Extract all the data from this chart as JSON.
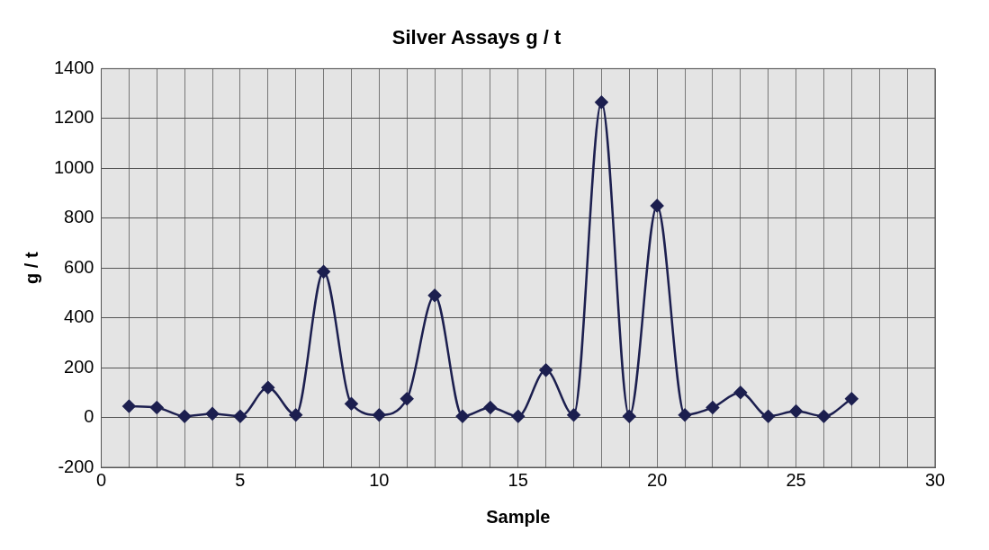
{
  "chart_data": {
    "type": "line",
    "title": "Silver Assays g / t",
    "xlabel": "Sample",
    "ylabel": "g / t",
    "x": [
      1,
      2,
      3,
      4,
      5,
      6,
      7,
      8,
      9,
      10,
      11,
      12,
      13,
      14,
      15,
      16,
      17,
      18,
      19,
      20,
      21,
      22,
      23,
      24,
      25,
      26,
      27
    ],
    "series": [
      {
        "color": "#1c1f4f",
        "values": [
          45,
          40,
          5,
          15,
          5,
          120,
          10,
          585,
          55,
          10,
          75,
          490,
          5,
          40,
          5,
          190,
          10,
          1265,
          5,
          850,
          10,
          40,
          100,
          5,
          25,
          5,
          75
        ]
      }
    ],
    "xlim": [
      0,
      30
    ],
    "xticks": [
      0,
      {
        "value": 1,
        "label": null
      },
      {
        "value": 2,
        "label": null
      },
      {
        "value": 3,
        "label": null
      },
      {
        "value": 4,
        "label": null
      },
      5,
      {
        "value": 6,
        "label": null
      },
      {
        "value": 7,
        "label": null
      },
      {
        "value": 8,
        "label": null
      },
      {
        "value": 9,
        "label": null
      },
      10,
      {
        "value": 11,
        "label": null
      },
      {
        "value": 12,
        "label": null
      },
      {
        "value": 13,
        "label": null
      },
      {
        "value": 14,
        "label": null
      },
      15,
      {
        "value": 16,
        "label": null
      },
      {
        "value": 17,
        "label": null
      },
      {
        "value": 18,
        "label": null
      },
      {
        "value": 19,
        "label": null
      },
      20,
      {
        "value": 21,
        "label": null
      },
      {
        "value": 22,
        "label": null
      },
      {
        "value": 23,
        "label": null
      },
      {
        "value": 24,
        "label": null
      },
      25,
      {
        "value": 26,
        "label": null
      },
      {
        "value": 27,
        "label": null
      },
      {
        "value": 28,
        "label": null
      },
      {
        "value": 29,
        "label": null
      },
      30
    ],
    "ylim": [
      -200,
      1400
    ],
    "yticks": [
      -200,
      0,
      200,
      400,
      600,
      800,
      1000,
      1200,
      1400
    ],
    "grid": true,
    "legend": false,
    "marker": "diamond",
    "line_style": "solid"
  }
}
